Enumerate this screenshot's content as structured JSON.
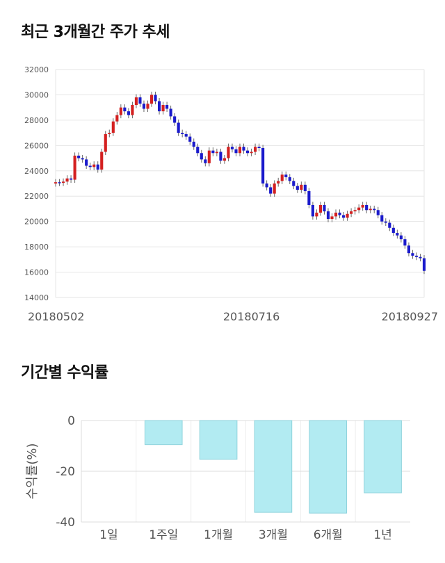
{
  "sections": {
    "price_title": "최근 3개월간 주가 추세",
    "returns_title": "기간별 수익률"
  },
  "chart_data": [
    {
      "type": "candlestick",
      "title": "최근 3개월간 주가 추세",
      "ylim": [
        14000,
        32000
      ],
      "yticks": [
        14000,
        16000,
        18000,
        20000,
        22000,
        24000,
        26000,
        28000,
        30000,
        32000
      ],
      "xticks": [
        {
          "index": 0,
          "label": "20180502"
        },
        {
          "index": 51,
          "label": "20180716"
        },
        {
          "index": 101,
          "label": "20180927"
        }
      ],
      "colors": {
        "up": "#d42020",
        "down": "#1a1acc"
      },
      "grid": true,
      "closes": [
        23100,
        23050,
        23150,
        23400,
        23300,
        25200,
        25000,
        24900,
        24400,
        24300,
        24500,
        24100,
        25500,
        26900,
        27000,
        27900,
        28400,
        29000,
        28700,
        28400,
        29200,
        29800,
        29300,
        28900,
        29300,
        30000,
        29500,
        28700,
        29200,
        28900,
        28300,
        27800,
        27000,
        26900,
        26700,
        26300,
        25900,
        25400,
        24900,
        24600,
        25600,
        25400,
        25500,
        24800,
        25000,
        25900,
        25700,
        25400,
        25900,
        25600,
        25400,
        25500,
        25900,
        25800,
        23000,
        22700,
        22200,
        23000,
        23200,
        23700,
        23500,
        23200,
        22800,
        22500,
        22900,
        22400,
        21300,
        20400,
        20700,
        21300,
        20800,
        20200,
        20400,
        20700,
        20500,
        20300,
        20600,
        20800,
        20900,
        21100,
        21300,
        20900,
        21000,
        20900,
        20500,
        20000,
        19900,
        19500,
        19100,
        18900,
        18600,
        18100,
        17500,
        17300,
        17200,
        17100,
        16100
      ]
    },
    {
      "type": "bar",
      "title": "기간별 수익률",
      "ylabel": "수익률(%)",
      "ylim": [
        -40,
        0
      ],
      "yticks": [
        0,
        -20,
        -40
      ],
      "categories": [
        "1일",
        "1주일",
        "1개월",
        "3개월",
        "6개월",
        "1년"
      ],
      "values": [
        0,
        -9.5,
        -15.3,
        -36.2,
        -36.5,
        -28.5
      ],
      "bar_color": "#b2ebf2",
      "bar_border": "#8fd3dc"
    }
  ]
}
